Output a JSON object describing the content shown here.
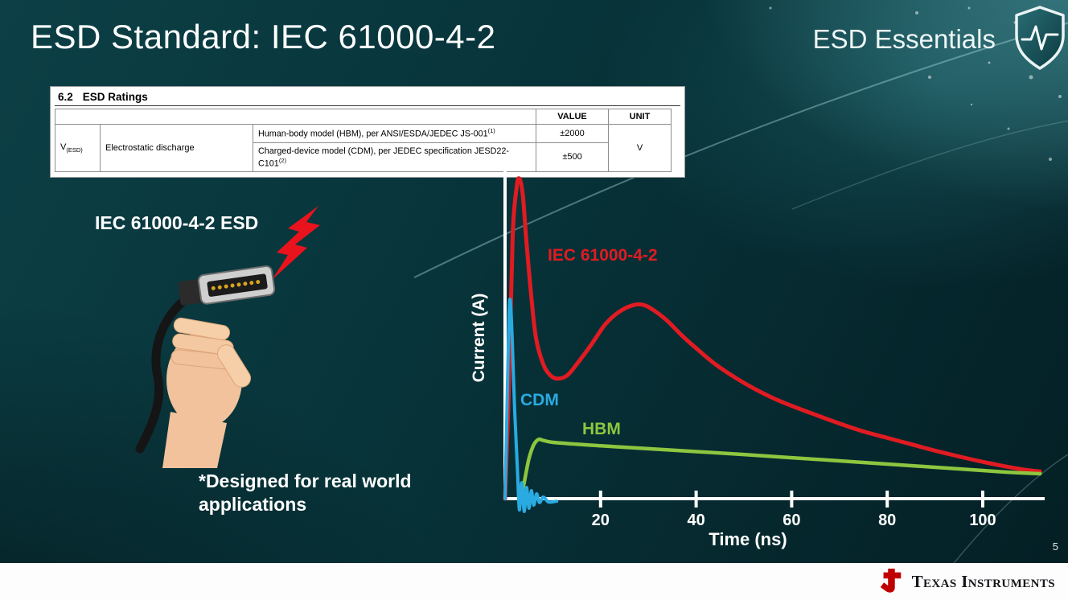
{
  "slide": {
    "title": "ESD Standard: IEC 61000-4-2",
    "series_label": "ESD Essentials",
    "page_number": "5",
    "footer_brand": "Texas Instruments"
  },
  "ratings_table": {
    "section": "6.2",
    "section_title": "ESD Ratings",
    "col_value": "VALUE",
    "col_unit": "UNIT",
    "symbol_base": "V",
    "symbol_sub": "(ESD)",
    "parameter": "Electrostatic discharge",
    "rows": [
      {
        "condition": "Human-body model (HBM), per ANSI/ESDA/JEDEC JS-001",
        "condition_sup": "(1)",
        "value": "±2000"
      },
      {
        "condition": "Charged-device model (CDM), per JEDEC specification JESD22-C101",
        "condition_sup": "(2)",
        "value": "±500"
      }
    ],
    "unit": "V"
  },
  "left_panel": {
    "caption": "IEC 61000-4-2 ESD",
    "note": "*Designed for real world applications"
  },
  "chart_data": {
    "type": "line",
    "title": "",
    "xlabel": "Time (ns)",
    "ylabel": "Current (A)",
    "xlim": [
      0,
      112
    ],
    "ylim": [
      -0.06,
      1.05
    ],
    "xticks": [
      20,
      40,
      60,
      80,
      100
    ],
    "grid": false,
    "legend_position": "inline-annotations",
    "series": [
      {
        "name": "IEC 61000-4-2",
        "color": "#e11b22",
        "points": [
          [
            0,
            0
          ],
          [
            0.8,
            0.35
          ],
          [
            1.6,
            0.82
          ],
          [
            2.4,
            0.97
          ],
          [
            3,
            1.0
          ],
          [
            3.7,
            0.95
          ],
          [
            4.5,
            0.8
          ],
          [
            5.5,
            0.63
          ],
          [
            6.5,
            0.5
          ],
          [
            8,
            0.42
          ],
          [
            9.5,
            0.385
          ],
          [
            11,
            0.375
          ],
          [
            13,
            0.385
          ],
          [
            15,
            0.42
          ],
          [
            18,
            0.48
          ],
          [
            21,
            0.545
          ],
          [
            24,
            0.585
          ],
          [
            27,
            0.605
          ],
          [
            29,
            0.605
          ],
          [
            31,
            0.59
          ],
          [
            34,
            0.555
          ],
          [
            37,
            0.51
          ],
          [
            40,
            0.47
          ],
          [
            44,
            0.42
          ],
          [
            48,
            0.38
          ],
          [
            52,
            0.345
          ],
          [
            56,
            0.315
          ],
          [
            60,
            0.29
          ],
          [
            65,
            0.262
          ],
          [
            70,
            0.235
          ],
          [
            75,
            0.21
          ],
          [
            80,
            0.19
          ],
          [
            85,
            0.17
          ],
          [
            90,
            0.15
          ],
          [
            95,
            0.132
          ],
          [
            100,
            0.115
          ],
          [
            105,
            0.1
          ],
          [
            109,
            0.09
          ],
          [
            112,
            0.085
          ]
        ]
      },
      {
        "name": "HBM",
        "color": "#8dc63f",
        "points": [
          [
            3.2,
            0
          ],
          [
            4,
            0.05
          ],
          [
            5,
            0.125
          ],
          [
            6,
            0.168
          ],
          [
            7,
            0.185
          ],
          [
            8,
            0.182
          ],
          [
            10,
            0.176
          ],
          [
            15,
            0.17
          ],
          [
            20,
            0.165
          ],
          [
            30,
            0.156
          ],
          [
            40,
            0.147
          ],
          [
            50,
            0.138
          ],
          [
            60,
            0.128
          ],
          [
            70,
            0.118
          ],
          [
            80,
            0.108
          ],
          [
            90,
            0.098
          ],
          [
            100,
            0.088
          ],
          [
            106,
            0.082
          ],
          [
            112,
            0.078
          ]
        ]
      },
      {
        "name": "CDM",
        "color": "#29abe2",
        "points": [
          [
            0,
            0
          ],
          [
            0.4,
            0.28
          ],
          [
            0.8,
            0.56
          ],
          [
            1.1,
            0.62
          ],
          [
            1.5,
            0.5
          ],
          [
            2,
            0.28
          ],
          [
            2.6,
            0.09
          ],
          [
            3,
            -0.035
          ],
          [
            3.5,
            0.05
          ],
          [
            4,
            -0.04
          ],
          [
            4.5,
            0.035
          ],
          [
            5,
            -0.03
          ],
          [
            5.5,
            0.025
          ],
          [
            6,
            -0.02
          ],
          [
            6.6,
            0.015
          ],
          [
            7.2,
            -0.012
          ],
          [
            8,
            0.005
          ],
          [
            9,
            -0.01
          ],
          [
            10,
            -0.01
          ],
          [
            10.8,
            -0.008
          ]
        ]
      }
    ]
  }
}
